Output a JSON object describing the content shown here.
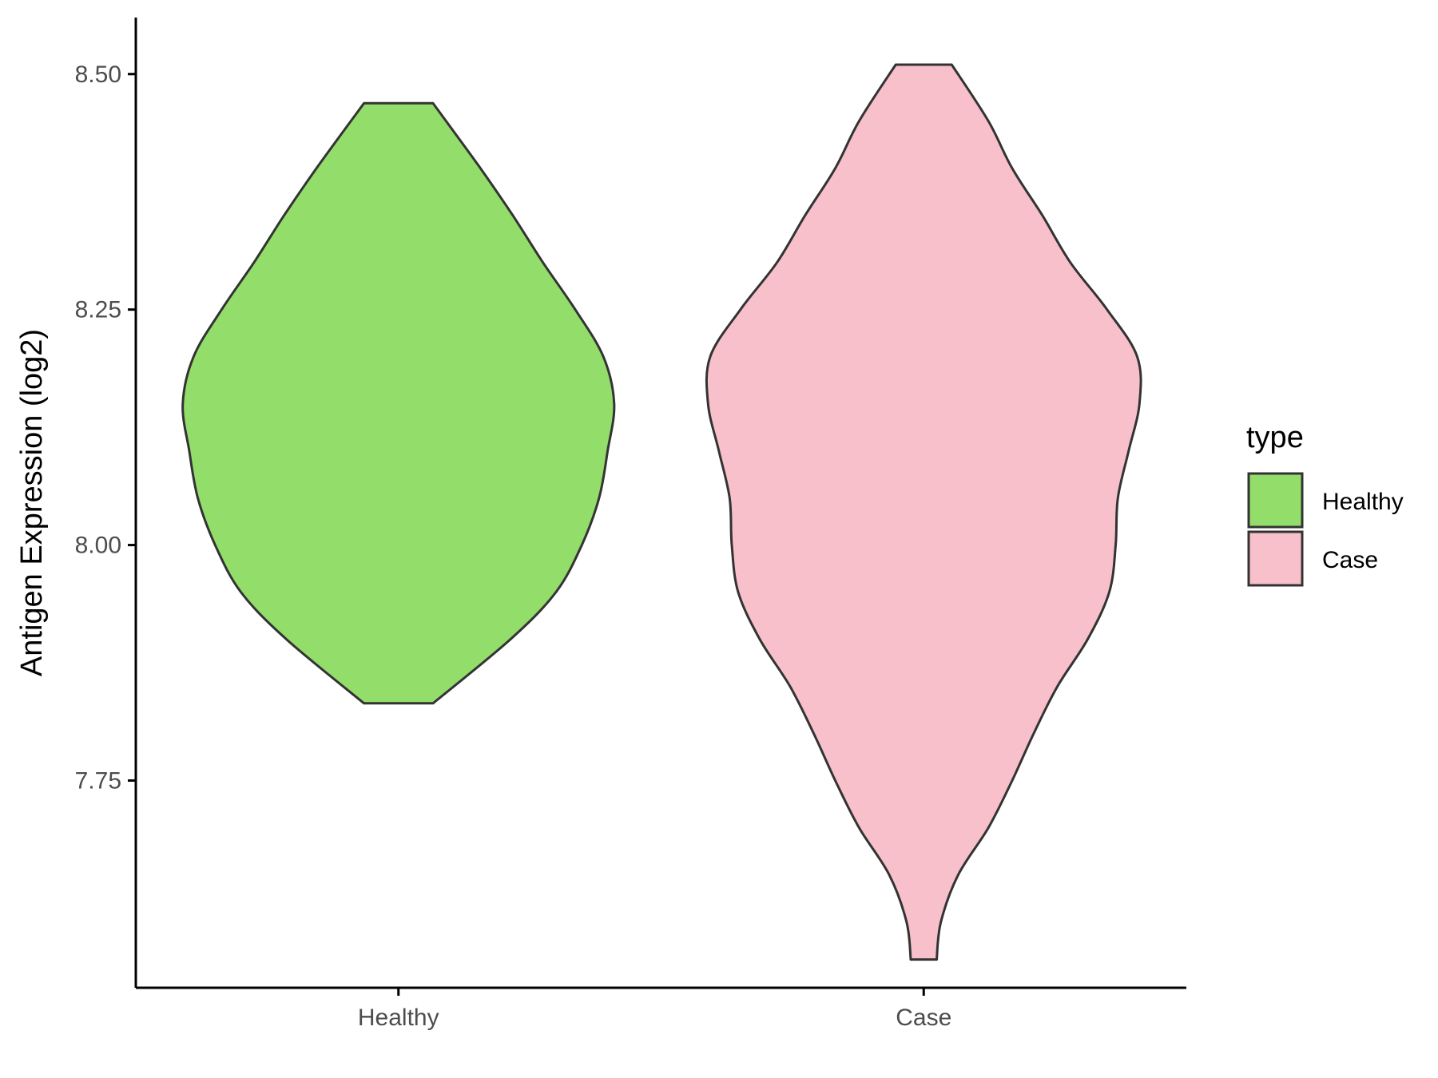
{
  "chart_data": {
    "type": "violin",
    "xlabel": "",
    "ylabel": "Antigen Expression (log2)",
    "ylim": [
      7.53,
      8.56
    ],
    "y_ticks": [
      "7.75",
      "8.00",
      "8.25",
      "8.50"
    ],
    "y_tick_values": [
      7.75,
      8.0,
      8.25,
      8.5
    ],
    "categories": [
      "Healthy",
      "Case"
    ],
    "grid": false,
    "legend": {
      "title": "type",
      "position": "right",
      "entries": [
        "Healthy",
        "Case"
      ]
    },
    "colors": {
      "Healthy": "#93dd6a",
      "Case": "#f7c0cb",
      "outline": "#333333",
      "axis": "#000000"
    },
    "series": [
      {
        "category": "Healthy",
        "min": 7.832,
        "max": 8.469,
        "density_profile": [
          [
            7.832,
            0.16
          ],
          [
            7.9,
            0.52
          ],
          [
            7.95,
            0.73
          ],
          [
            8.0,
            0.85
          ],
          [
            8.05,
            0.93
          ],
          [
            8.1,
            0.97
          ],
          [
            8.15,
            1.0
          ],
          [
            8.2,
            0.95
          ],
          [
            8.25,
            0.82
          ],
          [
            8.3,
            0.67
          ],
          [
            8.35,
            0.53
          ],
          [
            8.4,
            0.38
          ],
          [
            8.469,
            0.16
          ]
        ]
      },
      {
        "category": "Case",
        "min": 7.56,
        "max": 8.51,
        "density_profile": [
          [
            7.56,
            0.06
          ],
          [
            7.6,
            0.08
          ],
          [
            7.65,
            0.16
          ],
          [
            7.7,
            0.3
          ],
          [
            7.75,
            0.41
          ],
          [
            7.8,
            0.51
          ],
          [
            7.85,
            0.62
          ],
          [
            7.9,
            0.76
          ],
          [
            7.95,
            0.86
          ],
          [
            8.0,
            0.89
          ],
          [
            8.05,
            0.9
          ],
          [
            8.1,
            0.95
          ],
          [
            8.15,
            1.0
          ],
          [
            8.2,
            0.99
          ],
          [
            8.25,
            0.85
          ],
          [
            8.3,
            0.68
          ],
          [
            8.35,
            0.55
          ],
          [
            8.4,
            0.41
          ],
          [
            8.45,
            0.3
          ],
          [
            8.51,
            0.13
          ]
        ]
      }
    ]
  }
}
